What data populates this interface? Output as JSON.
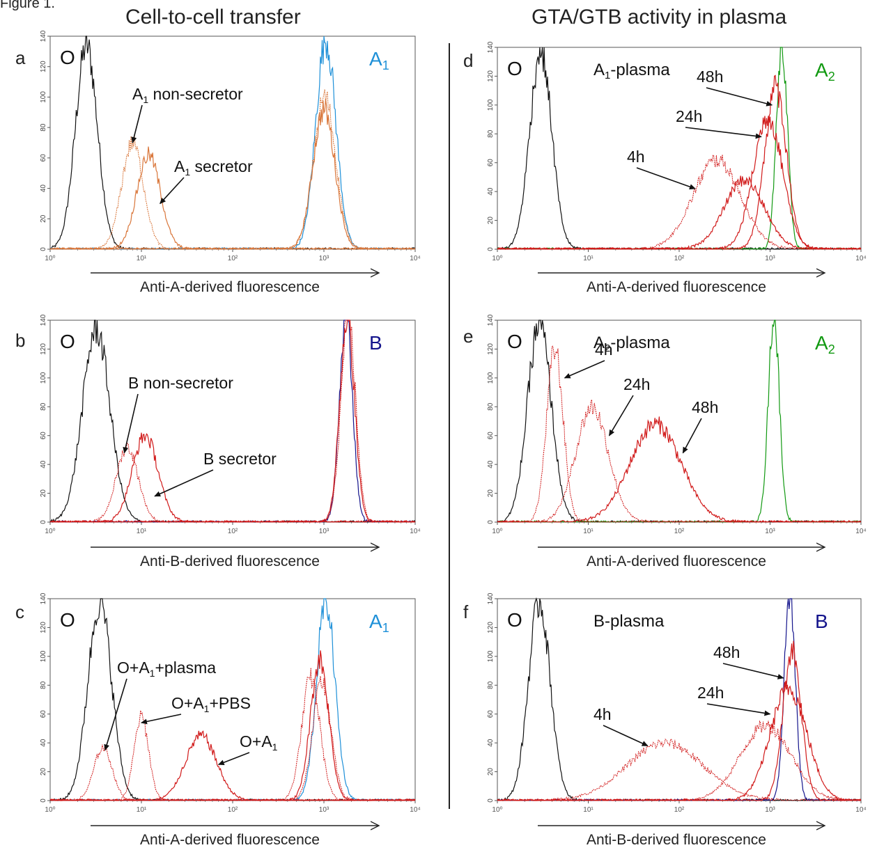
{
  "figure": {
    "label": "Figure 1.",
    "left_title": "Cell-to-cell transfer",
    "right_title": "GTA/GTB activity in plasma"
  },
  "colors": {
    "black": "#111111",
    "light_blue": "#1e90d8",
    "dark_blue": "#14148c",
    "green": "#119911",
    "red": "#d11a1a",
    "orange": "#d9763a"
  },
  "chart_data": [
    {
      "id": "a",
      "type": "line",
      "letter": "a",
      "xlabel": "Anti-A-derived fluorescence",
      "xscale": "log",
      "xlim": [
        1,
        10000
      ],
      "xticks": [
        "10⁰",
        "10¹",
        "10²",
        "10³",
        "10⁴"
      ],
      "ylim": [
        0,
        140
      ],
      "yticks": [
        "0",
        "20",
        "40",
        "60",
        "80",
        "100",
        "120",
        "140"
      ],
      "corner_labels": {
        "left": "O",
        "right": "A",
        "right_sub": "1",
        "right_color": "light_blue"
      },
      "series": [
        {
          "color": "black",
          "dashed": false,
          "center": 2.5,
          "sigma": 0.12,
          "peak": 134
        },
        {
          "color": "light_blue",
          "dashed": false,
          "center": 1050,
          "sigma": 0.11,
          "peak": 138
        },
        {
          "color": "orange",
          "dashed": false,
          "center": 1000,
          "sigma": 0.12,
          "peak": 92
        },
        {
          "color": "orange",
          "dashed": true,
          "center": 1020,
          "sigma": 0.12,
          "peak": 100
        },
        {
          "color": "orange",
          "dashed": true,
          "center": 8,
          "sigma": 0.12,
          "peak": 70
        },
        {
          "color": "orange",
          "dashed": false,
          "center": 12,
          "sigma": 0.13,
          "peak": 62
        }
      ],
      "annotations": [
        {
          "text": "A",
          "sub": "1",
          "rest": " non-secretor",
          "tx": 190,
          "ty": 143,
          "ax": 8,
          "ay": 70
        },
        {
          "text": "A",
          "sub": "1",
          "rest": " secretor",
          "tx": 250,
          "ty": 247,
          "ax": 16,
          "ay": 30
        }
      ]
    },
    {
      "id": "b",
      "type": "line",
      "letter": "b",
      "xlabel": "Anti-B-derived fluorescence",
      "xscale": "log",
      "xlim": [
        1,
        10000
      ],
      "xticks": [
        "10⁰",
        "10¹",
        "10²",
        "10³",
        "10⁴"
      ],
      "ylim": [
        0,
        140
      ],
      "yticks": [
        "0",
        "20",
        "40",
        "60",
        "80",
        "100",
        "120",
        "140"
      ],
      "corner_labels": {
        "left": "O",
        "right": "B",
        "right_sub": "",
        "right_color": "dark_blue"
      },
      "series": [
        {
          "color": "black",
          "dashed": false,
          "center": 3.2,
          "sigma": 0.15,
          "peak": 134
        },
        {
          "color": "dark_blue",
          "dashed": false,
          "center": 1750,
          "sigma": 0.07,
          "peak": 145
        },
        {
          "color": "red",
          "dashed": false,
          "center": 1800,
          "sigma": 0.08,
          "peak": 142
        },
        {
          "color": "red",
          "dashed": true,
          "center": 1850,
          "sigma": 0.08,
          "peak": 142
        },
        {
          "color": "red",
          "dashed": true,
          "center": 7,
          "sigma": 0.12,
          "peak": 52
        },
        {
          "color": "red",
          "dashed": false,
          "center": 11,
          "sigma": 0.14,
          "peak": 60
        }
      ],
      "annotations": [
        {
          "text": "B non-secretor",
          "sub": "",
          "rest": "",
          "tx": 184,
          "ty": 558,
          "ax": 6.5,
          "ay": 48
        },
        {
          "text": "B secretor",
          "sub": "",
          "rest": "",
          "tx": 292,
          "ty": 667,
          "ax": 14,
          "ay": 18
        }
      ]
    },
    {
      "id": "c",
      "type": "line",
      "letter": "c",
      "xlabel": "Anti-A-derived fluorescence",
      "xscale": "log",
      "xlim": [
        1,
        10000
      ],
      "xticks": [
        "10⁰",
        "10¹",
        "10²",
        "10³",
        "10⁴"
      ],
      "ylim": [
        0,
        140
      ],
      "yticks": [
        "0",
        "20",
        "40",
        "60",
        "80",
        "100",
        "120",
        "140"
      ],
      "corner_labels": {
        "left": "O",
        "right": "A",
        "right_sub": "1",
        "right_color": "light_blue"
      },
      "series": [
        {
          "color": "black",
          "dashed": false,
          "center": 3.5,
          "sigma": 0.13,
          "peak": 138
        },
        {
          "color": "light_blue",
          "dashed": false,
          "center": 1050,
          "sigma": 0.1,
          "peak": 140
        },
        {
          "color": "red",
          "dashed": true,
          "center": 3.8,
          "sigma": 0.1,
          "peak": 37
        },
        {
          "color": "red",
          "dashed": true,
          "center": 10,
          "sigma": 0.08,
          "peak": 58
        },
        {
          "color": "red",
          "dashed": false,
          "center": 45,
          "sigma": 0.17,
          "peak": 45
        },
        {
          "color": "red",
          "dashed": true,
          "center": 720,
          "sigma": 0.1,
          "peak": 85
        },
        {
          "color": "red",
          "dashed": false,
          "center": 900,
          "sigma": 0.1,
          "peak": 98
        },
        {
          "color": "red",
          "dashed": true,
          "center": 950,
          "sigma": 0.1,
          "peak": 82
        }
      ],
      "annotations": [
        {
          "text": "O+A",
          "sub": "1",
          "rest": "+plasma",
          "tx": 168,
          "ty": 967,
          "ax": 4,
          "ay": 35
        },
        {
          "text": "O+A",
          "sub": "1",
          "rest": "+PBS",
          "tx": 246,
          "ty": 1018,
          "ax": 10,
          "ay": 54
        },
        {
          "text": "O+A",
          "sub": "1",
          "rest": "",
          "tx": 344,
          "ty": 1073,
          "ax": 70,
          "ay": 25
        }
      ]
    },
    {
      "id": "d",
      "type": "line",
      "letter": "d",
      "xlabel": "Anti-A-derived fluorescence",
      "xscale": "log",
      "xlim": [
        1,
        10000
      ],
      "xticks": [
        "10⁰",
        "10¹",
        "10²",
        "10³",
        "10⁴"
      ],
      "ylim": [
        0,
        140
      ],
      "yticks": [
        "0",
        "20",
        "40",
        "60",
        "80",
        "100",
        "120",
        "140"
      ],
      "corner_labels": {
        "left": "O",
        "right": "A",
        "right_sub": "2",
        "right_color": "green"
      },
      "plasma_label": {
        "text": "A",
        "sub": "1",
        "rest": "-plasma"
      },
      "series": [
        {
          "color": "black",
          "dashed": false,
          "center": 3.0,
          "sigma": 0.12,
          "peak": 138
        },
        {
          "color": "green",
          "dashed": false,
          "center": 1350,
          "sigma": 0.06,
          "peak": 145
        },
        {
          "color": "red",
          "dashed": true,
          "center": 260,
          "sigma": 0.26,
          "peak": 62
        },
        {
          "color": "red",
          "dashed": false,
          "center": 520,
          "sigma": 0.22,
          "peak": 48
        },
        {
          "color": "red",
          "dashed": false,
          "center": 950,
          "sigma": 0.16,
          "peak": 92
        },
        {
          "color": "red",
          "dashed": false,
          "center": 1150,
          "sigma": 0.12,
          "peak": 112
        }
      ],
      "annotations": [
        {
          "text": "48h",
          "sub": "",
          "rest": "",
          "tx": 1000,
          "ty": 118,
          "ax": 1050,
          "ay": 100
        },
        {
          "text": "24h",
          "sub": "",
          "rest": "",
          "tx": 970,
          "ty": 175,
          "ax": 800,
          "ay": 78
        },
        {
          "text": "4h",
          "sub": "",
          "rest": "",
          "tx": 900,
          "ty": 233,
          "ax": 150,
          "ay": 42
        }
      ]
    },
    {
      "id": "e",
      "type": "line",
      "letter": "e",
      "xlabel": "Anti-A-derived fluorescence",
      "xscale": "log",
      "xlim": [
        1,
        10000
      ],
      "xticks": [
        "10⁰",
        "10¹",
        "10²",
        "10³",
        "10⁴"
      ],
      "ylim": [
        0,
        140
      ],
      "yticks": [
        "0",
        "20",
        "40",
        "60",
        "80",
        "100",
        "120",
        "140"
      ],
      "corner_labels": {
        "left": "O",
        "right": "A",
        "right_sub": "2",
        "right_color": "green"
      },
      "plasma_label": {
        "text": "A",
        "sub": "2",
        "rest": "-plasma"
      },
      "series": [
        {
          "color": "black",
          "dashed": false,
          "center": 2.9,
          "sigma": 0.13,
          "peak": 138
        },
        {
          "color": "green",
          "dashed": false,
          "center": 1100,
          "sigma": 0.06,
          "peak": 145
        },
        {
          "color": "red",
          "dashed": true,
          "center": 4.3,
          "sigma": 0.09,
          "peak": 120
        },
        {
          "color": "red",
          "dashed": true,
          "center": 11,
          "sigma": 0.18,
          "peak": 80
        },
        {
          "color": "red",
          "dashed": false,
          "center": 55,
          "sigma": 0.28,
          "peak": 68
        }
      ],
      "annotations": [
        {
          "text": "4h",
          "sub": "",
          "rest": "",
          "tx": 854,
          "ty": 510,
          "ax": 5.5,
          "ay": 100
        },
        {
          "text": "24h",
          "sub": "",
          "rest": "",
          "tx": 895,
          "ty": 560,
          "ax": 17,
          "ay": 60
        },
        {
          "text": "48h",
          "sub": "",
          "rest": "",
          "tx": 993,
          "ty": 593,
          "ax": 110,
          "ay": 48
        }
      ]
    },
    {
      "id": "f",
      "type": "line",
      "letter": "f",
      "xlabel": "Anti-B-derived fluorescence",
      "xscale": "log",
      "xlim": [
        1,
        10000
      ],
      "xticks": [
        "10⁰",
        "10¹",
        "10²",
        "10³",
        "10⁴"
      ],
      "ylim": [
        0,
        140
      ],
      "yticks": [
        "0",
        "20",
        "40",
        "60",
        "80",
        "100",
        "120",
        "140"
      ],
      "corner_labels": {
        "left": "O",
        "right": "B",
        "right_sub": "",
        "right_color": "dark_blue"
      },
      "plasma_label": {
        "text": "B-plasma",
        "sub": "",
        "rest": ""
      },
      "series": [
        {
          "color": "black",
          "dashed": false,
          "center": 2.9,
          "sigma": 0.12,
          "peak": 138
        },
        {
          "color": "dark_blue",
          "dashed": false,
          "center": 1650,
          "sigma": 0.06,
          "peak": 145
        },
        {
          "color": "red",
          "dashed": true,
          "center": 70,
          "sigma": 0.42,
          "peak": 40
        },
        {
          "color": "red",
          "dashed": true,
          "center": 900,
          "sigma": 0.28,
          "peak": 52
        },
        {
          "color": "red",
          "dashed": false,
          "center": 1600,
          "sigma": 0.2,
          "peak": 78
        },
        {
          "color": "red",
          "dashed": false,
          "center": 1750,
          "sigma": 0.1,
          "peak": 105
        }
      ],
      "annotations": [
        {
          "text": "48h",
          "sub": "",
          "rest": "",
          "tx": 1024,
          "ty": 945,
          "ax": 1400,
          "ay": 85
        },
        {
          "text": "24h",
          "sub": "",
          "rest": "",
          "tx": 1001,
          "ty": 1003,
          "ax": 1000,
          "ay": 60
        },
        {
          "text": "4h",
          "sub": "",
          "rest": "",
          "tx": 852,
          "ty": 1034,
          "ax": 45,
          "ay": 38
        }
      ]
    }
  ]
}
